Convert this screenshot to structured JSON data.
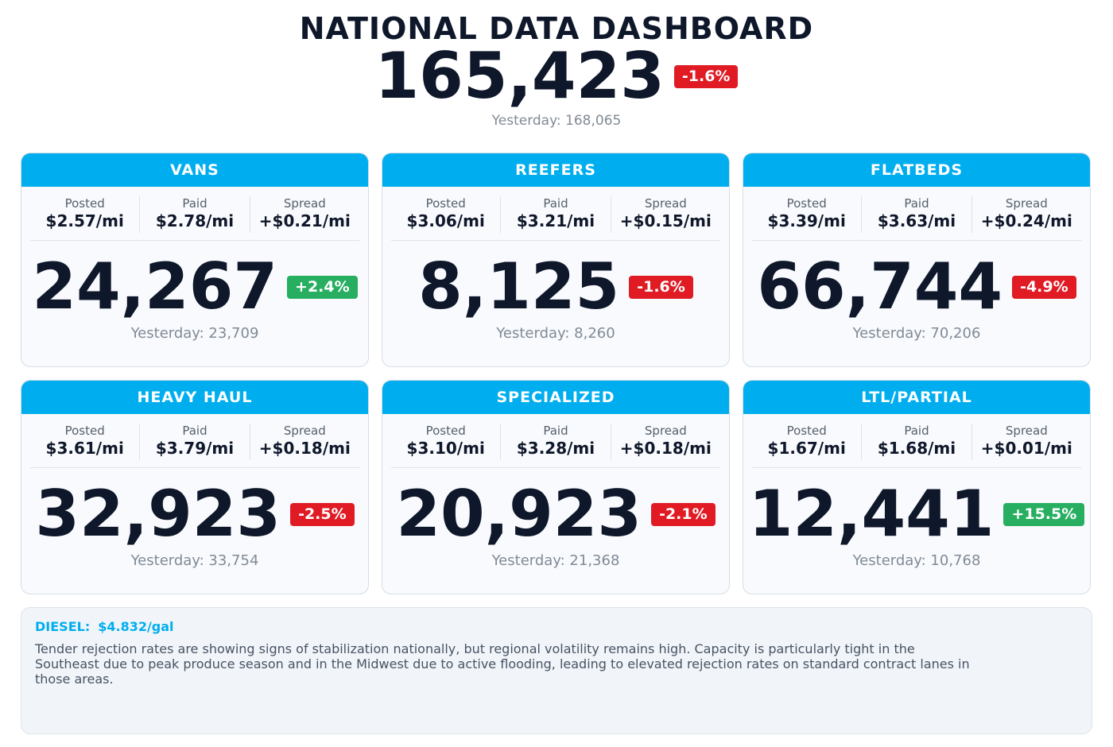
{
  "header": {
    "title": "NATIONAL DATA DASHBOARD",
    "value": "165,423",
    "change": "-1.6%",
    "yesterday": "Yesterday: 168,065"
  },
  "cards": [
    {
      "title": "VANS",
      "stats": [
        {
          "label": "Posted",
          "value": "$2.57/mi"
        },
        {
          "label": "Paid",
          "value": "$2.78/mi"
        },
        {
          "label": "Spread",
          "value": "+$0.21/mi"
        }
      ],
      "value": "24,267",
      "change": "+2.4%",
      "yesterday": "Yesterday: 23,709"
    },
    {
      "title": "REEFERS",
      "stats": [
        {
          "label": "Posted",
          "value": "$3.06/mi"
        },
        {
          "label": "Paid",
          "value": "$3.21/mi"
        },
        {
          "label": "Spread",
          "value": "+$0.15/mi"
        }
      ],
      "value": "8,125",
      "change": "-1.6%",
      "yesterday": "Yesterday: 8,260"
    },
    {
      "title": "FLATBEDS",
      "stats": [
        {
          "label": "Posted",
          "value": "$3.39/mi"
        },
        {
          "label": "Paid",
          "value": "$3.63/mi"
        },
        {
          "label": "Spread",
          "value": "+$0.24/mi"
        }
      ],
      "value": "66,744",
      "change": "-4.9%",
      "yesterday": "Yesterday: 70,206"
    },
    {
      "title": "HEAVY HAUL",
      "stats": [
        {
          "label": "Posted",
          "value": "$3.61/mi"
        },
        {
          "label": "Paid",
          "value": "$3.79/mi"
        },
        {
          "label": "Spread",
          "value": "+$0.18/mi"
        }
      ],
      "value": "32,923",
      "change": "-2.5%",
      "yesterday": "Yesterday: 33,754"
    },
    {
      "title": "SPECIALIZED",
      "stats": [
        {
          "label": "Posted",
          "value": "$3.10/mi"
        },
        {
          "label": "Paid",
          "value": "$3.28/mi"
        },
        {
          "label": "Spread",
          "value": "+$0.18/mi"
        }
      ],
      "value": "20,923",
      "change": "-2.1%",
      "yesterday": "Yesterday: 21,368"
    },
    {
      "title": "LTL/PARTIAL",
      "stats": [
        {
          "label": "Posted",
          "value": "$1.67/mi"
        },
        {
          "label": "Paid",
          "value": "$1.68/mi"
        },
        {
          "label": "Spread",
          "value": "+$0.01/mi"
        }
      ],
      "value": "12,441",
      "change": "+15.5%",
      "yesterday": "Yesterday: 10,768"
    }
  ],
  "footer": {
    "diesel_label": "DIESEL:",
    "diesel_value": "$4.832/gal",
    "note": "Tender rejection rates are showing signs of stabilization nationally, but regional volatility remains high. Capacity is particularly tight in the Southeast due to peak produce season and in the Midwest due to active flooding, leading to elevated rejection rates on standard contract lanes in those areas."
  }
}
